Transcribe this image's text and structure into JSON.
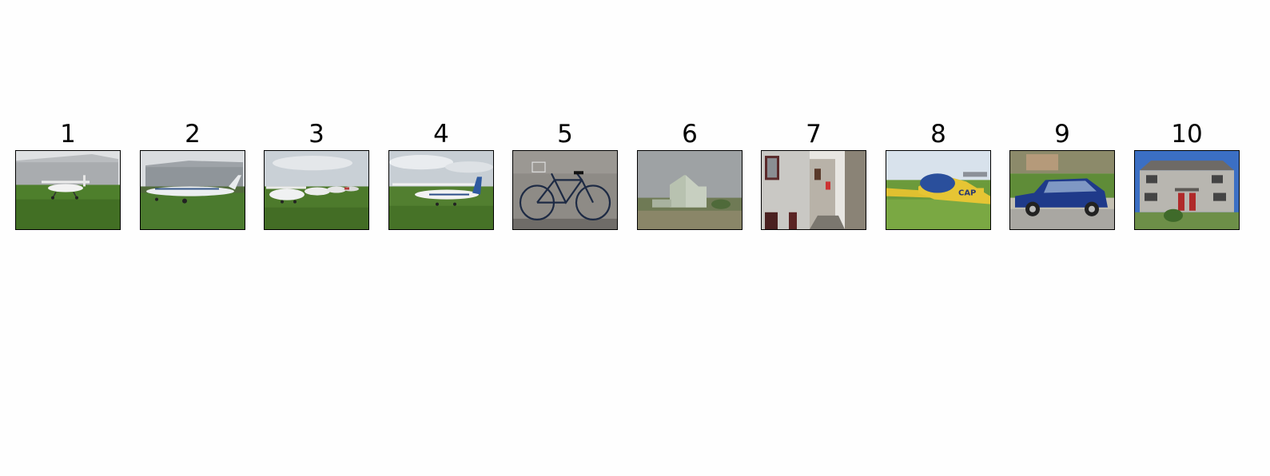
{
  "panels": [
    {
      "label": "1",
      "image": "small white single-engine airplane on grass in front of a grey hangar"
    },
    {
      "label": "2",
      "image": "white twin-engine airplane parked on tarmac in front of a hangar"
    },
    {
      "label": "3",
      "image": "row of small airplanes parked on a grass airfield"
    },
    {
      "label": "4",
      "image": "white high-wing airplane with blue tail on a grass field"
    },
    {
      "label": "5",
      "image": "blue bicycle with front basket leaning against a stone wall"
    },
    {
      "label": "6",
      "image": "pale house on a grassy dune under overcast sky"
    },
    {
      "label": "7",
      "image": "narrow street lined with old houses"
    },
    {
      "label": "8",
      "image": "blue and yellow airplane on grass with the letters CAP"
    },
    {
      "label": "9",
      "image": "small blue hatchback car parked on a street"
    },
    {
      "label": "10",
      "image": "grey semi-detached house with red doors and a hedge"
    }
  ]
}
